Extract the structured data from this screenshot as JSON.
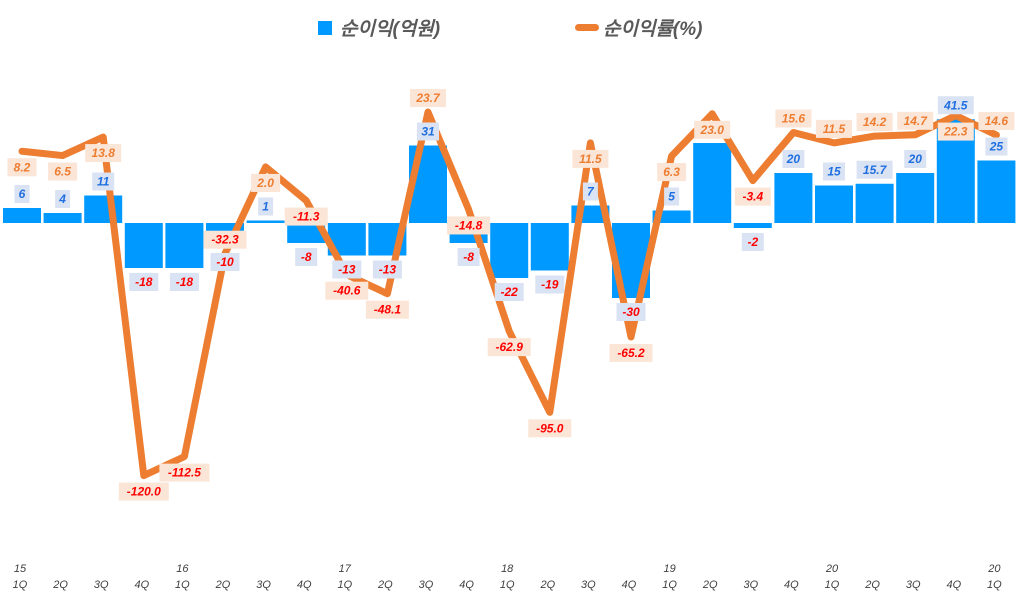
{
  "chart_data": {
    "type": "bar+line",
    "title": "",
    "legend": {
      "placement": "top",
      "items": [
        "순이익(억원)",
        "순이익률(%)"
      ]
    },
    "categories": [
      "1Q",
      "2Q",
      "3Q",
      "4Q",
      "1Q",
      "2Q",
      "3Q",
      "4Q",
      "1Q",
      "2Q",
      "3Q",
      "4Q",
      "1Q",
      "2Q",
      "3Q",
      "4Q",
      "1Q",
      "2Q",
      "3Q",
      "4Q",
      "1Q",
      "2Q",
      "3Q",
      "4Q",
      "1Q"
    ],
    "year_labels": [
      "15",
      "",
      "",
      "",
      "16",
      "",
      "",
      "",
      "17",
      "",
      "",
      "",
      "18",
      "",
      "",
      "",
      "19",
      "",
      "",
      "",
      "20",
      "",
      "",
      "",
      "20"
    ],
    "series": [
      {
        "name": "순이익(억원)",
        "type": "bar",
        "color": "#0099FF",
        "values": [
          6,
          4,
          11,
          -18,
          -18,
          -10,
          1,
          -8,
          -13,
          -13,
          31,
          -8,
          -22,
          -19,
          7,
          -30,
          5,
          32,
          -2,
          20,
          15,
          15.7,
          20,
          41.5,
          25
        ],
        "labels": [
          "6",
          "4",
          "11",
          "-18",
          "-18",
          "-10",
          "1",
          "-8",
          "-13",
          "-13",
          "31",
          "-8",
          "-22",
          "-19",
          "7",
          "-30",
          "5",
          "",
          "-2",
          "20",
          "15",
          "15.7",
          "20",
          "41.5",
          "25"
        ]
      },
      {
        "name": "순이익률(%)",
        "type": "line",
        "color": "#ED7D31",
        "values": [
          8.2,
          6.5,
          13.8,
          -120.0,
          -112.5,
          -32.3,
          2.0,
          -11.3,
          -40.6,
          -48.1,
          23.7,
          -14.8,
          -62.9,
          -95.0,
          11.5,
          -65.2,
          6.3,
          23.0,
          -3.4,
          15.6,
          11.5,
          14.2,
          14.7,
          22.3,
          14.6
        ],
        "labels": [
          "8.2",
          "6.5",
          "13.8",
          "-120.0",
          "-112.5",
          "-32.3",
          "2.0",
          "-11.3",
          "-40.6",
          "-48.1",
          "23.7",
          "-14.8",
          "-62.9",
          "-95.0",
          "11.5",
          "-65.2",
          "6.3",
          "23.0",
          "-3.4",
          "15.6",
          "11.5",
          "14.2",
          "14.7",
          "22.3",
          "14.6"
        ]
      }
    ],
    "grid": false,
    "colors": {
      "positive_bar_label": "#1F6FE0",
      "negative_label": "#FF0000",
      "line_label": "#ED7D31",
      "bar_label_bg": "#DAE3F3",
      "line_label_bg": "#FBE5D6"
    }
  }
}
